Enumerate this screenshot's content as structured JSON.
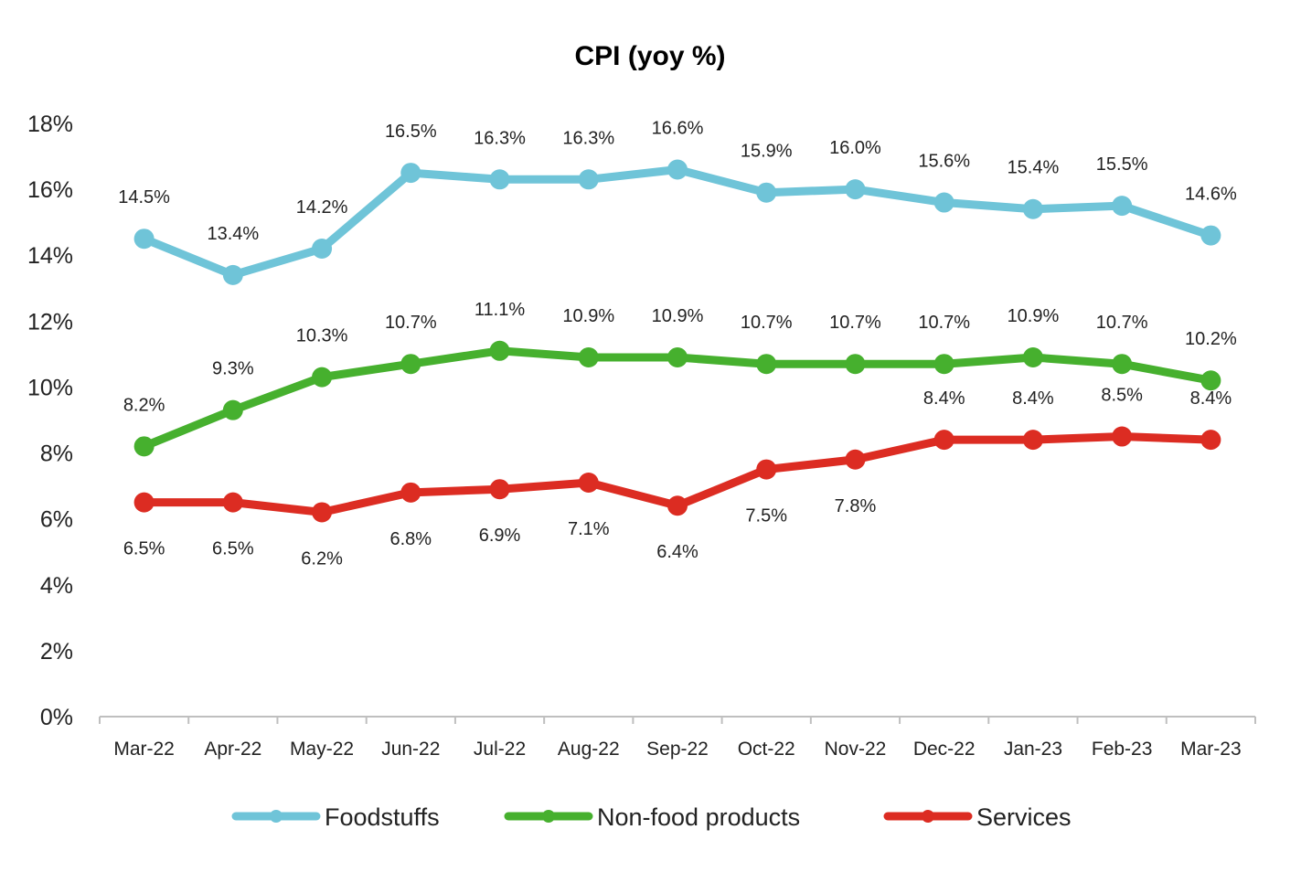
{
  "chart_data": {
    "type": "line",
    "title": "CPI (yoy %)",
    "xlabel": "",
    "ylabel": "",
    "categories": [
      "Mar-22",
      "Apr-22",
      "May-22",
      "Jun-22",
      "Jul-22",
      "Aug-22",
      "Sep-22",
      "Oct-22",
      "Nov-22",
      "Dec-22",
      "Jan-23",
      "Feb-23",
      "Mar-23"
    ],
    "ylim": [
      0,
      18
    ],
    "yticks": [
      0,
      2,
      4,
      6,
      8,
      10,
      12,
      14,
      16,
      18
    ],
    "ytick_labels": [
      "0%",
      "2%",
      "4%",
      "6%",
      "8%",
      "10%",
      "12%",
      "14%",
      "16%",
      "18%"
    ],
    "grid": false,
    "legend_position": "bottom",
    "series": [
      {
        "name": "Foodstuffs",
        "color": "#6fc4d8",
        "label_position": "above",
        "values": [
          14.5,
          13.4,
          14.2,
          16.5,
          16.3,
          16.3,
          16.6,
          15.9,
          16.0,
          15.6,
          15.4,
          15.5,
          14.6
        ],
        "labels": [
          "14.5%",
          "13.4%",
          "14.2%",
          "16.5%",
          "16.3%",
          "16.3%",
          "16.6%",
          "15.9%",
          "16.0%",
          "15.6%",
          "15.4%",
          "15.5%",
          "14.6%"
        ]
      },
      {
        "name": "Non-food products",
        "color": "#46b02e",
        "label_position": "above",
        "values": [
          8.2,
          9.3,
          10.3,
          10.7,
          11.1,
          10.9,
          10.9,
          10.7,
          10.7,
          10.7,
          10.9,
          10.7,
          10.2
        ],
        "labels": [
          "8.2%",
          "9.3%",
          "10.3%",
          "10.7%",
          "11.1%",
          "10.9%",
          "10.9%",
          "10.7%",
          "10.7%",
          "10.7%",
          "10.9%",
          "10.7%",
          "10.2%"
        ]
      },
      {
        "name": "Services",
        "color": "#dc2c22",
        "label_position_rule": "below_until_index_8_then_above",
        "values": [
          6.5,
          6.5,
          6.2,
          6.8,
          6.9,
          7.1,
          6.4,
          7.5,
          7.8,
          8.4,
          8.4,
          8.5,
          8.4
        ],
        "labels": [
          "6.5%",
          "6.5%",
          "6.2%",
          "6.8%",
          "6.9%",
          "7.1%",
          "6.4%",
          "7.5%",
          "7.8%",
          "8.4%",
          "8.4%",
          "8.5%",
          "8.4%"
        ]
      }
    ]
  }
}
